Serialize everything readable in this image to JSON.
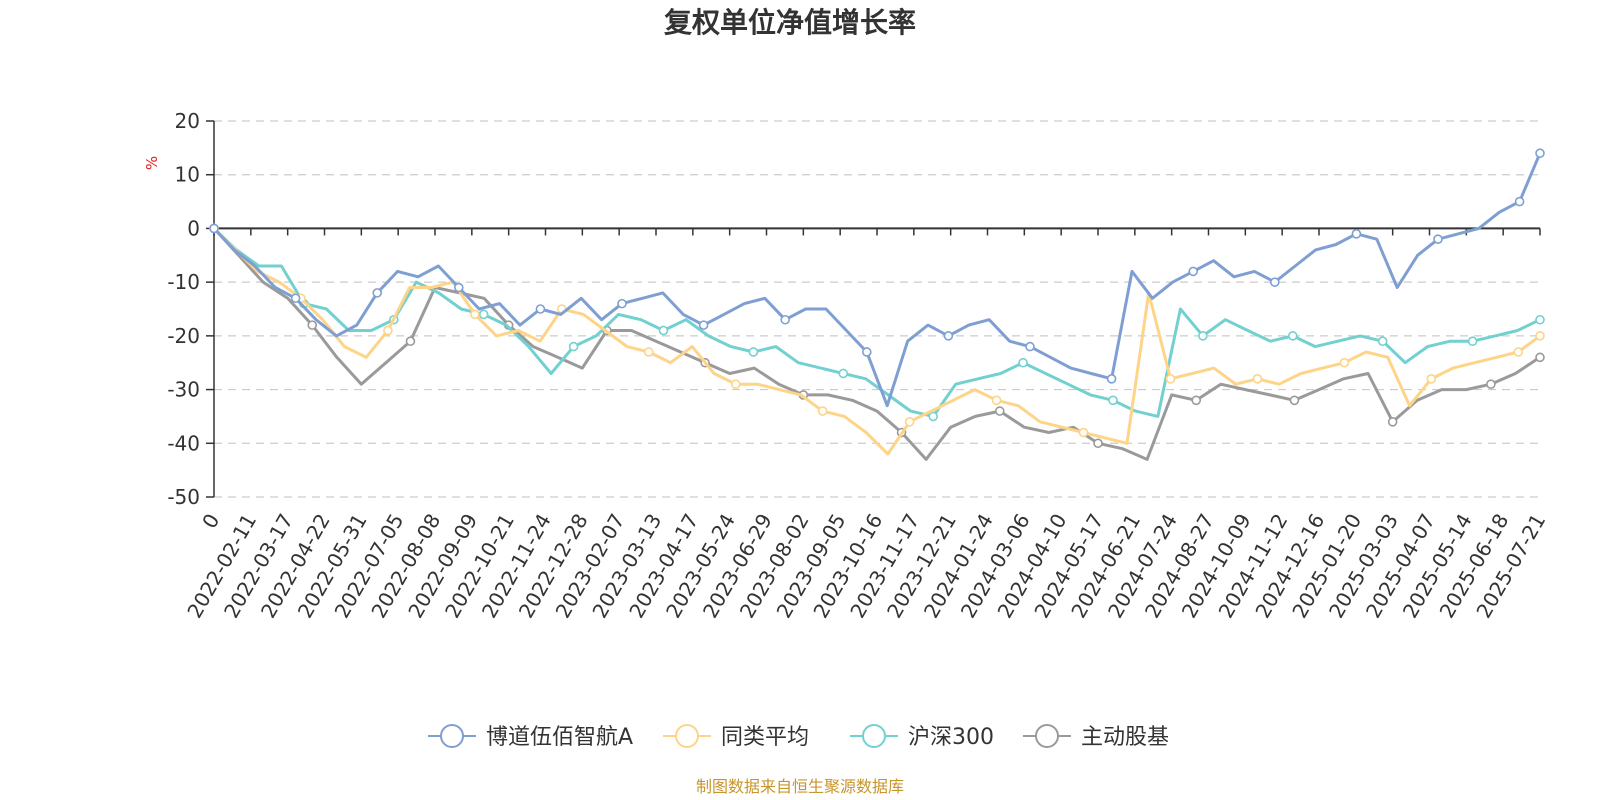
{
  "chart_data": {
    "type": "line",
    "title": "复权单位净值增长率",
    "ylabel": "%",
    "ylim": [
      -50,
      20
    ],
    "yticks": [
      20,
      10,
      0,
      -10,
      -20,
      -30,
      -40,
      -50
    ],
    "xlabels": [
      "0",
      "2022-02-11",
      "2022-03-17",
      "2022-04-22",
      "2022-05-31",
      "2022-07-05",
      "2022-08-08",
      "2022-09-09",
      "2022-10-21",
      "2022-11-24",
      "2022-12-28",
      "2023-02-07",
      "2023-03-13",
      "2023-04-17",
      "2023-05-24",
      "2023-06-29",
      "2023-08-02",
      "2023-09-05",
      "2023-10-16",
      "2023-11-17",
      "2023-12-21",
      "2024-01-24",
      "2024-03-06",
      "2024-04-10",
      "2024-05-17",
      "2024-06-21",
      "2024-07-24",
      "2024-08-27",
      "2024-10-09",
      "2024-11-12",
      "2024-12-16",
      "2025-01-20",
      "2025-03-03",
      "2025-04-07",
      "2025-05-14",
      "2025-06-18",
      "2025-07-21"
    ],
    "grid": true,
    "legend_position": "bottom",
    "series": [
      {
        "name": "博道伍佰智航A",
        "color": "#7f9fd3",
        "values": [
          0,
          -4,
          -7,
          -11,
          -13,
          -17,
          -20,
          -18,
          -12,
          -8,
          -9,
          -7,
          -11,
          -15,
          -14,
          -18,
          -15,
          -16,
          -13,
          -17,
          -14,
          -13,
          -12,
          -16,
          -18,
          -16,
          -14,
          -13,
          -17,
          -15,
          -15,
          -19,
          -23,
          -33,
          -21,
          -18,
          -20,
          -18,
          -17,
          -21,
          -22,
          -24,
          -26,
          -27,
          -28,
          -8,
          -13,
          -10,
          -8,
          -6,
          -9,
          -8,
          -10,
          -7,
          -4,
          -3,
          -1,
          -2,
          -11,
          -5,
          -2,
          -1,
          0,
          3,
          5,
          14
        ]
      },
      {
        "name": "同类平均",
        "color": "#fdd488",
        "values": [
          0,
          -4,
          -8,
          -10,
          -13,
          -17,
          -22,
          -24,
          -19,
          -11,
          -11,
          -10,
          -16,
          -20,
          -19,
          -21,
          -15,
          -16,
          -19,
          -22,
          -23,
          -25,
          -22,
          -27,
          -29,
          -29,
          -30,
          -31,
          -34,
          -35,
          -38,
          -42,
          -36,
          -34,
          -32,
          -30,
          -32,
          -33,
          -36,
          -37,
          -38,
          -39,
          -40,
          -12,
          -28,
          -27,
          -26,
          -29,
          -28,
          -29,
          -27,
          -26,
          -25,
          -23,
          -24,
          -33,
          -28,
          -26,
          -25,
          -24,
          -23,
          -20
        ]
      },
      {
        "name": "沪深300",
        "color": "#72d0d1",
        "values": [
          0,
          -4,
          -7,
          -7,
          -14,
          -15,
          -19,
          -19,
          -17,
          -10,
          -12,
          -15,
          -16,
          -18,
          -22,
          -27,
          -22,
          -20,
          -16,
          -17,
          -19,
          -17,
          -20,
          -22,
          -23,
          -22,
          -25,
          -26,
          -27,
          -28,
          -31,
          -34,
          -35,
          -29,
          -28,
          -27,
          -25,
          -27,
          -29,
          -31,
          -32,
          -34,
          -35,
          -15,
          -20,
          -17,
          -19,
          -21,
          -20,
          -22,
          -21,
          -20,
          -21,
          -25,
          -22,
          -21,
          -21,
          -20,
          -19,
          -17
        ]
      },
      {
        "name": "主动股基",
        "color": "#9a9a9a",
        "values": [
          0,
          -5,
          -10,
          -13,
          -18,
          -24,
          -29,
          -25,
          -21,
          -11,
          -12,
          -13,
          -18,
          -22,
          -24,
          -26,
          -19,
          -19,
          -21,
          -23,
          -25,
          -27,
          -26,
          -29,
          -31,
          -31,
          -32,
          -34,
          -38,
          -43,
          -37,
          -35,
          -34,
          -37,
          -38,
          -37,
          -40,
          -41,
          -43,
          -31,
          -32,
          -29,
          -30,
          -31,
          -32,
          -30,
          -28,
          -27,
          -36,
          -32,
          -30,
          -30,
          -29,
          -27,
          -24
        ]
      }
    ]
  },
  "legend": {
    "items": [
      "博道伍佰智航A",
      "同类平均",
      "沪深300",
      "主动股基"
    ]
  },
  "source": "制图数据来自恒生聚源数据库"
}
